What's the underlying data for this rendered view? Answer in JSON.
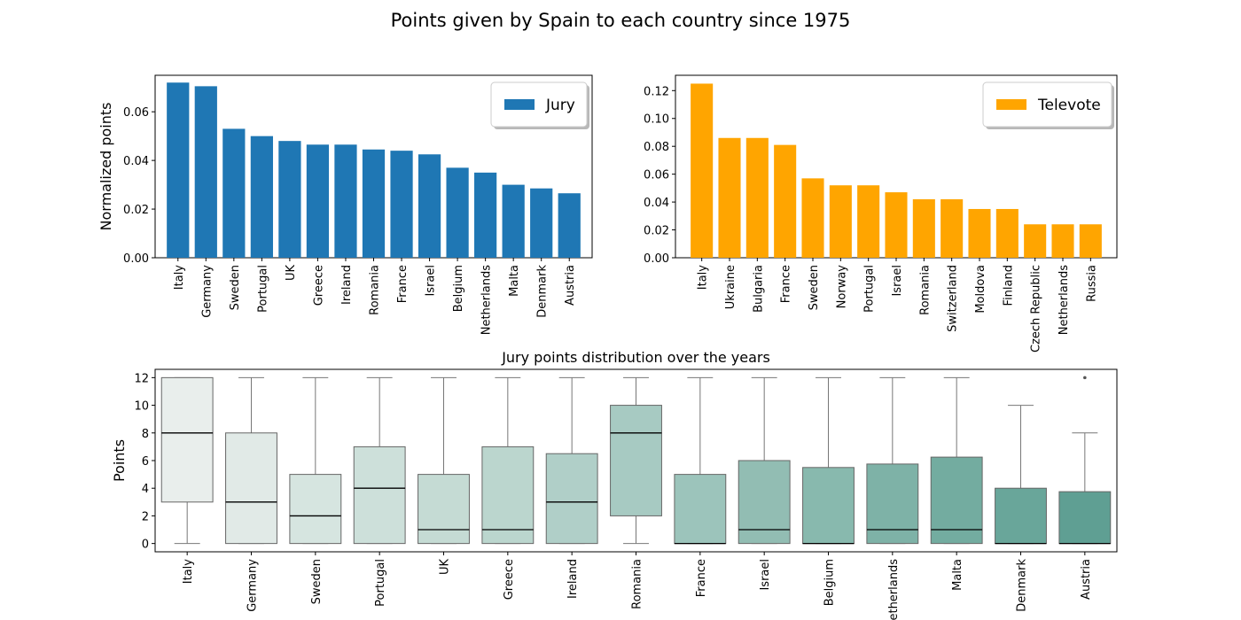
{
  "figure": {
    "suptitle": "Points given by Spain to each country since 1975"
  },
  "chart_data": [
    {
      "type": "bar",
      "title": "",
      "xlabel": "",
      "ylabel": "Normalized points",
      "ylim": [
        0,
        0.075
      ],
      "yticks": [
        "0.00",
        "0.02",
        "0.04",
        "0.06"
      ],
      "legend": {
        "placement": "top-right",
        "entries": [
          "Jury"
        ]
      },
      "color": "#1f77b4",
      "categories": [
        "Italy",
        "Germany",
        "Sweden",
        "Portugal",
        "UK",
        "Greece",
        "Ireland",
        "Romania",
        "France",
        "Israel",
        "Belgium",
        "Netherlands",
        "Malta",
        "Denmark",
        "Austria"
      ],
      "series": [
        {
          "name": "Jury",
          "values": [
            0.072,
            0.0705,
            0.053,
            0.05,
            0.048,
            0.0465,
            0.0465,
            0.0445,
            0.044,
            0.0425,
            0.037,
            0.035,
            0.03,
            0.0285,
            0.0265
          ]
        }
      ]
    },
    {
      "type": "bar",
      "title": "",
      "xlabel": "",
      "ylabel": "",
      "ylim": [
        0,
        0.131
      ],
      "yticks": [
        "0.00",
        "0.02",
        "0.04",
        "0.06",
        "0.08",
        "0.10",
        "0.12"
      ],
      "legend": {
        "placement": "top-right",
        "entries": [
          "Televote"
        ]
      },
      "color": "#ffa500",
      "categories": [
        "Italy",
        "Ukraine",
        "Bulgaria",
        "France",
        "Sweden",
        "Norway",
        "Portugal",
        "Israel",
        "Romania",
        "Switzerland",
        "Moldova",
        "Finland",
        "Czech Republic",
        "Netherlands",
        "Russia"
      ],
      "series": [
        {
          "name": "Televote",
          "values": [
            0.125,
            0.086,
            0.086,
            0.081,
            0.057,
            0.052,
            0.052,
            0.047,
            0.042,
            0.042,
            0.035,
            0.035,
            0.024,
            0.024,
            0.024
          ]
        }
      ]
    },
    {
      "type": "box",
      "title": "Jury points distribution over the years",
      "xlabel": "",
      "ylabel": "Points",
      "ylim": [
        -0.6,
        12.6
      ],
      "yticks": [
        "0",
        "2",
        "4",
        "6",
        "8",
        "10",
        "12"
      ],
      "categories": [
        "Italy",
        "Germany",
        "Sweden",
        "Portugal",
        "UK",
        "Greece",
        "Ireland",
        "Romania",
        "France",
        "Israel",
        "Belgium",
        "Netherlands",
        "Malta",
        "Denmark",
        "Austria"
      ],
      "boxes": [
        {
          "q1": 3,
          "median": 8,
          "q3": 12,
          "whisker_low": 0,
          "whisker_high": 12,
          "outliers": []
        },
        {
          "q1": 0,
          "median": 3,
          "q3": 8,
          "whisker_low": 0,
          "whisker_high": 12,
          "outliers": []
        },
        {
          "q1": 0,
          "median": 2,
          "q3": 5,
          "whisker_low": 0,
          "whisker_high": 12,
          "outliers": []
        },
        {
          "q1": 0,
          "median": 4,
          "q3": 7,
          "whisker_low": 0,
          "whisker_high": 12,
          "outliers": []
        },
        {
          "q1": 0,
          "median": 1,
          "q3": 5,
          "whisker_low": 0,
          "whisker_high": 12,
          "outliers": []
        },
        {
          "q1": 0,
          "median": 1,
          "q3": 7,
          "whisker_low": 0,
          "whisker_high": 12,
          "outliers": []
        },
        {
          "q1": 0,
          "median": 3,
          "q3": 6.5,
          "whisker_low": 0,
          "whisker_high": 12,
          "outliers": []
        },
        {
          "q1": 2,
          "median": 8,
          "q3": 10,
          "whisker_low": 0,
          "whisker_high": 12,
          "outliers": []
        },
        {
          "q1": 0,
          "median": 0,
          "q3": 5,
          "whisker_low": 0,
          "whisker_high": 12,
          "outliers": []
        },
        {
          "q1": 0,
          "median": 1,
          "q3": 6,
          "whisker_low": 0,
          "whisker_high": 12,
          "outliers": []
        },
        {
          "q1": 0,
          "median": 0,
          "q3": 5.5,
          "whisker_low": 0,
          "whisker_high": 12,
          "outliers": []
        },
        {
          "q1": 0,
          "median": 1,
          "q3": 5.75,
          "whisker_low": 0,
          "whisker_high": 12,
          "outliers": []
        },
        {
          "q1": 0,
          "median": 1,
          "q3": 6.25,
          "whisker_low": 0,
          "whisker_high": 12,
          "outliers": []
        },
        {
          "q1": 0,
          "median": 0,
          "q3": 4,
          "whisker_low": 0,
          "whisker_high": 10,
          "outliers": []
        },
        {
          "q1": 0,
          "median": 0,
          "q3": 3.75,
          "whisker_low": 0,
          "whisker_high": 8,
          "outliers": [
            12
          ]
        }
      ],
      "colors": [
        "#e9eeec",
        "#e1eae7",
        "#d6e5e0",
        "#cde0da",
        "#c5dbd4",
        "#bbd6ce",
        "#b0cfc8",
        "#a7cac2",
        "#9cc4bb",
        "#92bdb3",
        "#88b9ae",
        "#7eb2a7",
        "#73aca0",
        "#69a69a",
        "#5f9f93"
      ]
    }
  ]
}
